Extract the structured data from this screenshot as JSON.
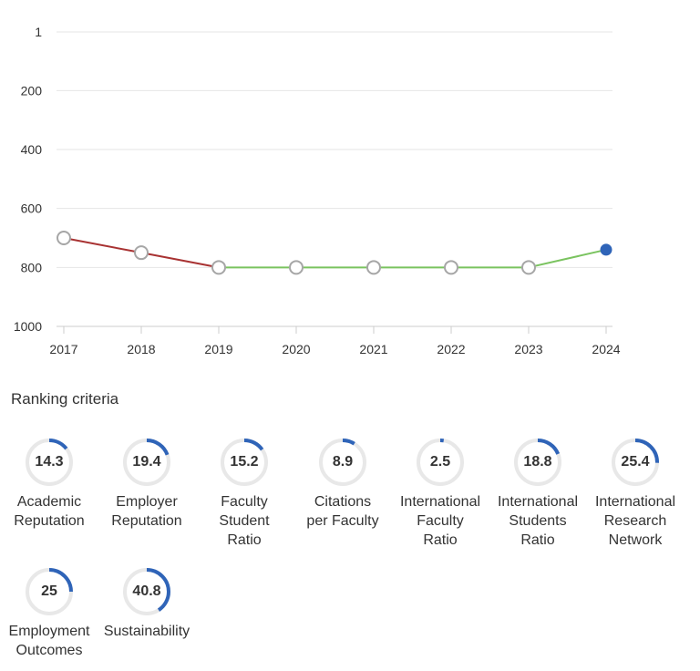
{
  "chart_data": {
    "type": "line",
    "title": "",
    "xlabel": "",
    "ylabel": "",
    "x": [
      "2017",
      "2018",
      "2019",
      "2020",
      "2021",
      "2022",
      "2023",
      "2024"
    ],
    "values": [
      700,
      750,
      800,
      800,
      800,
      800,
      800,
      740
    ],
    "ylim": [
      1000,
      1
    ],
    "y_reversed": true,
    "yticks": [
      "1",
      "200",
      "400",
      "600",
      "800",
      "1000"
    ],
    "ytick_values": [
      1,
      200,
      400,
      600,
      800,
      1000
    ],
    "grid": true,
    "colors": {
      "declining": "#a83232",
      "stable": "#7ac35f",
      "marker_stroke": "#a6a6a6",
      "latest_marker": "#2f64b8",
      "grid": "#e6e6e6"
    }
  },
  "criteria_section": {
    "title": "Ranking criteria",
    "arc_color": "#2f64b8",
    "track_color": "#e8e8e8",
    "items": [
      {
        "value": "14.3",
        "label_lines": [
          "Academic",
          "Reputation"
        ]
      },
      {
        "value": "19.4",
        "label_lines": [
          "Employer",
          "Reputation"
        ]
      },
      {
        "value": "15.2",
        "label_lines": [
          "Faculty",
          "Student",
          "Ratio"
        ]
      },
      {
        "value": "8.9",
        "label_lines": [
          "Citations",
          "per Faculty"
        ]
      },
      {
        "value": "2.5",
        "label_lines": [
          "International",
          "Faculty",
          "Ratio"
        ]
      },
      {
        "value": "18.8",
        "label_lines": [
          "International",
          "Students",
          "Ratio"
        ]
      },
      {
        "value": "25.4",
        "label_lines": [
          "International",
          "Research",
          "Network"
        ]
      },
      {
        "value": "25",
        "label_lines": [
          "Employment",
          "Outcomes"
        ]
      },
      {
        "value": "40.8",
        "label_lines": [
          "Sustainability"
        ]
      }
    ]
  }
}
